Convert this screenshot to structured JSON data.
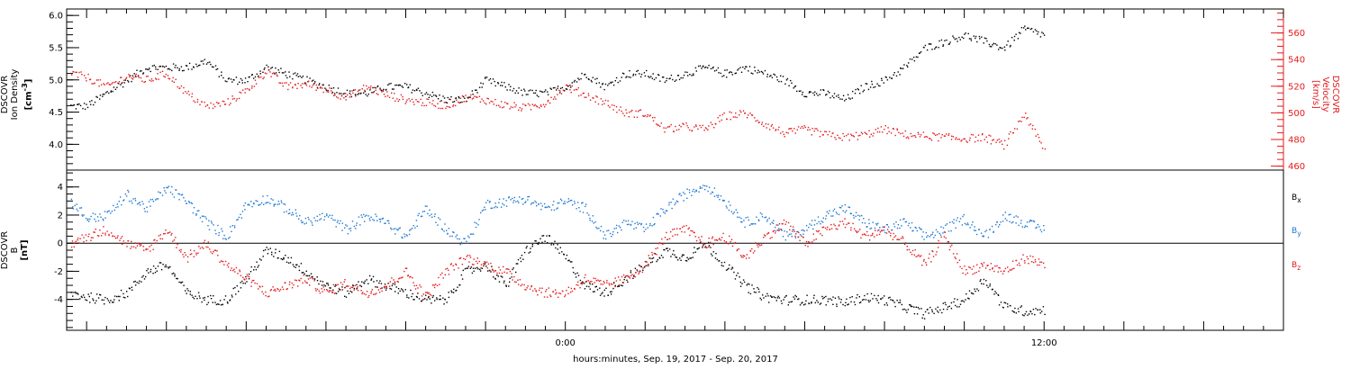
{
  "xaxis": {
    "title": "hours:minutes, Sep. 19, 2017 - Sep. 20, 2017",
    "tick_labels": [
      {
        "hour": 24,
        "label": "0:00"
      },
      {
        "hour": 36,
        "label": "12:00"
      }
    ],
    "range_hours": [
      11.5,
      42.0
    ],
    "major_tick_interval_hours": 2,
    "minor_tick_interval_hours": 0.5
  },
  "panel1": {
    "left_axis": {
      "line1": "DSCOVR",
      "line2": "Ion Density",
      "unit": "[cm",
      "unit_sup": "-3",
      "unit_end": "]",
      "ylim": [
        3.6,
        6.1
      ],
      "ticks": [
        "4.0",
        "4.5",
        "5.0",
        "5.5",
        "6.0"
      ]
    },
    "right_axis": {
      "line1": "DSCOVR",
      "line2": "Velocity",
      "unit": "[km/s]",
      "ylim": [
        457,
        578
      ],
      "ticks": [
        "460",
        "480",
        "500",
        "520",
        "540",
        "560"
      ]
    }
  },
  "panel2": {
    "left_axis": {
      "line1": "DSCOVR",
      "line2": "B",
      "unit": "[nT]",
      "ylim": [
        -6.2,
        5.2
      ],
      "ticks": [
        "-4",
        "-2",
        "0",
        "2",
        "4"
      ]
    },
    "components": [
      {
        "base": "B",
        "sub": "x",
        "color": "#000000"
      },
      {
        "base": "B",
        "sub": "y",
        "color": "#1f77d0"
      },
      {
        "base": "B",
        "sub": "z",
        "color": "#e41a1c"
      }
    ]
  },
  "colors": {
    "density": "#000000",
    "velocity": "#e41a1c",
    "bx": "#000000",
    "by": "#1f77d0",
    "bz": "#e41a1c",
    "frame": "#000000"
  },
  "chart_data": [
    {
      "type": "scatter",
      "ylabel": "DSCOVR Ion Density [cm-3]",
      "xlabel": "hours:minutes, Sep. 19, 2017 - Sep. 20, 2017",
      "ylim": [
        3.6,
        6.1
      ],
      "series": [
        {
          "name": "Ion Density",
          "axis": "left",
          "x": [
            11.6,
            12.0,
            12.5,
            13.0,
            13.5,
            14.0,
            14.5,
            15.0,
            15.5,
            16.0,
            16.5,
            17.0,
            17.5,
            18.0,
            18.5,
            19.0,
            19.5,
            20.0,
            20.5,
            21.0,
            21.5,
            22.0,
            22.5,
            23.0,
            23.5,
            24.0,
            24.5,
            25.0,
            25.5,
            26.0,
            26.5,
            27.0,
            27.5,
            28.0,
            28.5,
            29.0,
            29.5,
            30.0,
            30.5,
            31.0,
            31.5,
            32.0,
            32.5,
            33.0,
            33.5,
            34.0,
            34.5,
            35.0,
            35.5,
            36.0
          ],
          "y": [
            4.6,
            4.6,
            4.8,
            5.0,
            5.2,
            5.2,
            5.2,
            5.3,
            5.0,
            5.0,
            5.2,
            5.1,
            5.0,
            4.9,
            4.8,
            4.8,
            4.9,
            4.9,
            4.8,
            4.7,
            4.7,
            5.0,
            4.9,
            4.8,
            4.8,
            4.9,
            5.1,
            4.9,
            5.1,
            5.1,
            5.0,
            5.1,
            5.2,
            5.1,
            5.2,
            5.1,
            5.0,
            4.8,
            4.8,
            4.7,
            4.9,
            5.0,
            5.2,
            5.5,
            5.6,
            5.7,
            5.6,
            5.5,
            5.8,
            5.7
          ]
        }
      ]
    },
    {
      "type": "scatter",
      "ylabel": "DSCOVR Velocity [km/s]",
      "ylim": [
        457,
        578
      ],
      "series": [
        {
          "name": "Velocity",
          "axis": "right",
          "x": [
            11.6,
            12.0,
            12.5,
            13.0,
            13.5,
            14.0,
            14.5,
            15.0,
            15.5,
            16.0,
            16.5,
            17.0,
            17.5,
            18.0,
            18.5,
            19.0,
            19.5,
            20.0,
            20.5,
            21.0,
            21.5,
            22.0,
            22.5,
            23.0,
            23.5,
            24.0,
            24.5,
            25.0,
            25.5,
            26.0,
            26.5,
            27.0,
            27.5,
            28.0,
            28.5,
            29.0,
            29.5,
            30.0,
            30.5,
            31.0,
            31.5,
            32.0,
            32.5,
            33.0,
            33.5,
            34.0,
            34.5,
            35.0,
            35.5,
            36.0
          ],
          "y": [
            530,
            527,
            520,
            528,
            525,
            530,
            515,
            505,
            508,
            517,
            532,
            520,
            522,
            518,
            512,
            520,
            514,
            510,
            508,
            506,
            512,
            510,
            506,
            504,
            508,
            520,
            514,
            508,
            500,
            500,
            488,
            490,
            488,
            498,
            500,
            492,
            485,
            488,
            484,
            482,
            484,
            488,
            484,
            483,
            482,
            481,
            482,
            476,
            500,
            472
          ]
        }
      ]
    },
    {
      "type": "scatter",
      "ylabel": "DSCOVR B [nT]",
      "ylim": [
        -6.2,
        5.2
      ],
      "series": [
        {
          "name": "Bx",
          "x": [
            11.6,
            12.0,
            12.5,
            13.0,
            13.5,
            14.0,
            14.5,
            15.0,
            15.5,
            16.0,
            16.5,
            17.0,
            17.5,
            18.0,
            18.5,
            19.0,
            19.5,
            20.0,
            20.5,
            21.0,
            21.5,
            22.0,
            22.5,
            23.0,
            23.5,
            24.0,
            24.5,
            25.0,
            25.5,
            26.0,
            26.5,
            27.0,
            27.5,
            28.0,
            28.5,
            29.0,
            29.5,
            30.0,
            30.5,
            31.0,
            31.5,
            32.0,
            32.5,
            33.0,
            33.5,
            34.0,
            34.5,
            35.0,
            35.5,
            36.0
          ],
          "y": [
            -3.5,
            -3.8,
            -4.0,
            -3.5,
            -2.0,
            -1.5,
            -3.5,
            -4.0,
            -4.0,
            -2.5,
            -0.5,
            -1.0,
            -2.0,
            -3.0,
            -3.5,
            -2.5,
            -3.0,
            -3.5,
            -4.0,
            -4.0,
            -2.0,
            -1.5,
            -3.0,
            -0.5,
            0.5,
            -1.0,
            -3.0,
            -3.5,
            -2.5,
            -1.5,
            -0.5,
            -1.0,
            0.0,
            -1.5,
            -3.0,
            -3.8,
            -4.0,
            -4.0,
            -4.0,
            -4.2,
            -3.8,
            -4.0,
            -4.5,
            -5.0,
            -4.5,
            -4.0,
            -2.5,
            -4.5,
            -4.8,
            -4.7
          ]
        },
        {
          "name": "By",
          "x": [
            11.6,
            12.0,
            12.5,
            13.0,
            13.5,
            14.0,
            14.5,
            15.0,
            15.5,
            16.0,
            16.5,
            17.0,
            17.5,
            18.0,
            18.5,
            19.0,
            19.5,
            20.0,
            20.5,
            21.0,
            21.5,
            22.0,
            22.5,
            23.0,
            23.5,
            24.0,
            24.5,
            25.0,
            25.5,
            26.0,
            26.5,
            27.0,
            27.5,
            28.0,
            28.5,
            29.0,
            29.5,
            30.0,
            30.5,
            31.0,
            31.5,
            32.0,
            32.5,
            33.0,
            33.5,
            34.0,
            34.5,
            35.0,
            35.5,
            36.0
          ],
          "y": [
            3.0,
            1.8,
            2.0,
            3.5,
            2.5,
            4.0,
            3.0,
            1.5,
            0.5,
            2.8,
            3.2,
            2.5,
            1.5,
            2.0,
            1.0,
            2.0,
            1.5,
            0.5,
            2.5,
            1.0,
            0.0,
            2.8,
            3.0,
            3.2,
            2.5,
            3.0,
            2.5,
            0.5,
            1.5,
            1.0,
            2.5,
            3.5,
            4.2,
            3.0,
            1.5,
            2.0,
            0.5,
            1.0,
            2.0,
            2.5,
            1.5,
            1.0,
            1.5,
            0.5,
            1.0,
            1.8,
            0.5,
            2.0,
            1.5,
            1.0
          ]
        },
        {
          "name": "Bz",
          "x": [
            11.6,
            12.0,
            12.5,
            13.0,
            13.5,
            14.0,
            14.5,
            15.0,
            15.5,
            16.0,
            16.5,
            17.0,
            17.5,
            18.0,
            18.5,
            19.0,
            19.5,
            20.0,
            20.5,
            21.0,
            21.5,
            22.0,
            22.5,
            23.0,
            23.5,
            24.0,
            24.5,
            25.0,
            25.5,
            26.0,
            26.5,
            27.0,
            27.5,
            28.0,
            28.5,
            29.0,
            29.5,
            30.0,
            30.5,
            31.0,
            31.5,
            32.0,
            32.5,
            33.0,
            33.5,
            34.0,
            34.5,
            35.0,
            35.5,
            36.0
          ],
          "y": [
            0.0,
            0.5,
            1.0,
            0.0,
            -0.5,
            1.0,
            -1.0,
            0.0,
            -1.5,
            -2.5,
            -3.5,
            -3.0,
            -2.5,
            -3.5,
            -2.8,
            -3.5,
            -3.0,
            -2.0,
            -3.8,
            -2.0,
            -1.0,
            -1.5,
            -2.0,
            -3.0,
            -3.5,
            -3.5,
            -2.5,
            -3.0,
            -2.5,
            -1.5,
            0.5,
            1.0,
            0.0,
            0.5,
            -1.0,
            0.5,
            1.5,
            0.0,
            1.0,
            1.5,
            0.5,
            1.0,
            0.0,
            -1.5,
            0.5,
            -2.0,
            -1.5,
            -2.0,
            -1.0,
            -1.5
          ]
        }
      ]
    }
  ]
}
